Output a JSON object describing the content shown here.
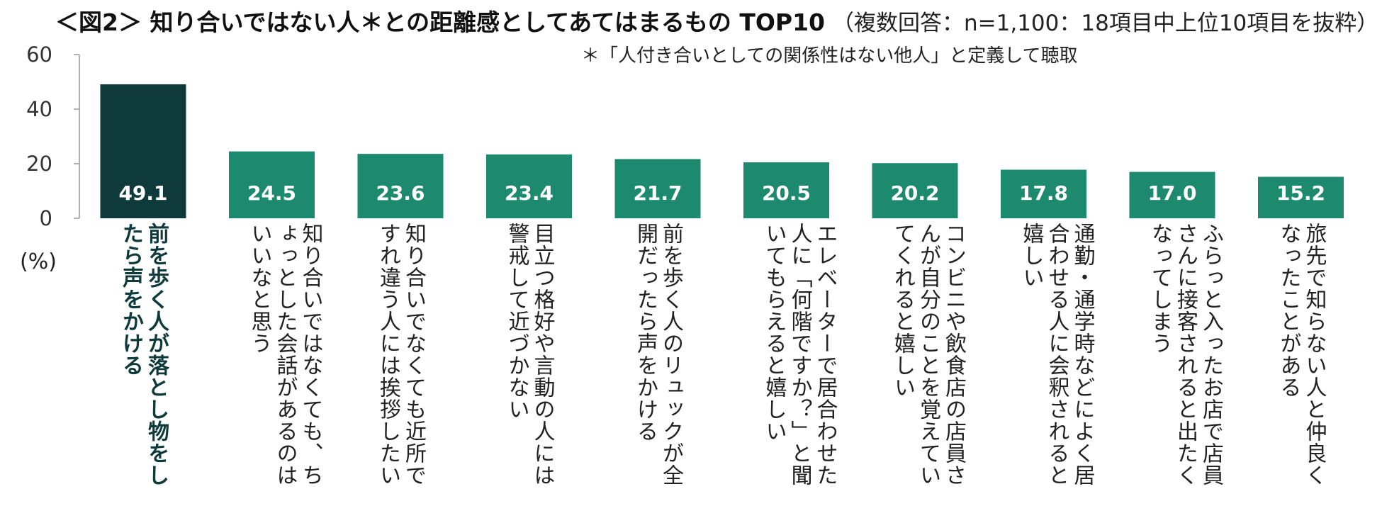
{
  "header": {
    "title": "＜図2＞ 知り合いではない人＊との距離感としてあてはまるもの TOP10",
    "subtitle": "（複数回答：n=1,100：18項目中上位10項目を抜粋）",
    "note": "＊「人付き合いとしての関係性はない他人」と定義して聴取"
  },
  "colors": {
    "highlight": "#0e3a3c",
    "bar": "#1d8a6f",
    "axis": "#999999"
  },
  "chart_data": {
    "type": "bar",
    "categories": [
      "前を歩く人が落とし物をしたら声をかける",
      "知り合いではなくても、ちょっとした会話があるのはいいなと思う",
      "知り合いでなくても近所ですれ違う人には挨拶したい",
      "目立つ格好や言動の人には警戒して近づかない",
      "前を歩く人のリュックが全開だったら声をかける",
      "エレベーターで居合わせた人に「何階ですか？」と聞いてもらえると嬉しい",
      "コンビニや飲食店の店員さんが自分のことを覚えていてくれると嬉しい",
      "通勤・通学時などによく居合わせる人に会釈されると嬉しい",
      "ふらっと入ったお店で店員さんに接客されると出たくなってしまう",
      "旅先で知らない人と仲良くなったことがある"
    ],
    "values": [
      49.1,
      24.5,
      23.6,
      23.4,
      21.7,
      20.5,
      20.2,
      17.8,
      17.0,
      15.2
    ],
    "value_labels": [
      "49.1",
      "24.5",
      "23.6",
      "23.4",
      "21.7",
      "20.5",
      "20.2",
      "17.8",
      "17.0",
      "15.2"
    ],
    "ylim": [
      0,
      60
    ],
    "yticks": [
      "0",
      "20",
      "40",
      "60"
    ],
    "ylabel": "(%)",
    "highlight_index": 0
  }
}
